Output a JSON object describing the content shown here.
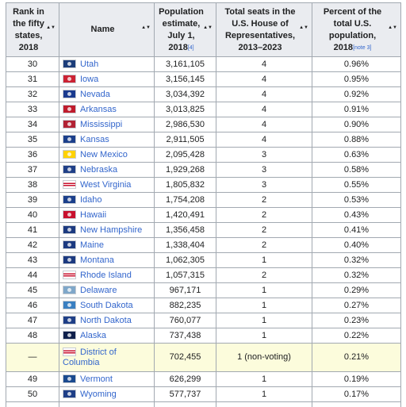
{
  "headers": {
    "rank": "Rank in the fifty states, 2018",
    "name": "Name",
    "population": "Population estimate, July 1, 2018",
    "population_note": "[4]",
    "seats": "Total seats in the U.S. House of Representatives, 2013–2023",
    "percent": "Percent of the total U.S. population, 2018",
    "percent_note": "[note 3]"
  },
  "rows": [
    {
      "rank": "30",
      "name": "Utah",
      "population": "3,161,105",
      "seats": "4",
      "percent": "0.96%",
      "flag_color": "#1c3d7a"
    },
    {
      "rank": "31",
      "name": "Iowa",
      "population": "3,156,145",
      "seats": "4",
      "percent": "0.95%",
      "flag_color": "#cc2233"
    },
    {
      "rank": "32",
      "name": "Nevada",
      "population": "3,034,392",
      "seats": "4",
      "percent": "0.92%",
      "flag_color": "#1a3a8f"
    },
    {
      "rank": "33",
      "name": "Arkansas",
      "population": "3,013,825",
      "seats": "4",
      "percent": "0.91%",
      "flag_color": "#bf1b2c"
    },
    {
      "rank": "34",
      "name": "Mississippi",
      "population": "2,986,530",
      "seats": "4",
      "percent": "0.90%",
      "flag_color": "#b22234"
    },
    {
      "rank": "35",
      "name": "Kansas",
      "population": "2,911,505",
      "seats": "4",
      "percent": "0.88%",
      "flag_color": "#1b3f8b"
    },
    {
      "rank": "36",
      "name": "New Mexico",
      "population": "2,095,428",
      "seats": "3",
      "percent": "0.63%",
      "flag_color": "#ffd200"
    },
    {
      "rank": "37",
      "name": "Nebraska",
      "population": "1,929,268",
      "seats": "3",
      "percent": "0.58%",
      "flag_color": "#1f3f87"
    },
    {
      "rank": "38",
      "name": "West Virginia",
      "population": "1,805,832",
      "seats": "3",
      "percent": "0.55%",
      "flag_color": "#ffffff"
    },
    {
      "rank": "39",
      "name": "Idaho",
      "population": "1,754,208",
      "seats": "2",
      "percent": "0.53%",
      "flag_color": "#1b3f8b"
    },
    {
      "rank": "40",
      "name": "Hawaii",
      "population": "1,420,491",
      "seats": "2",
      "percent": "0.43%",
      "flag_color": "#c8102e"
    },
    {
      "rank": "41",
      "name": "New Hampshire",
      "population": "1,356,458",
      "seats": "2",
      "percent": "0.41%",
      "flag_color": "#1c3a80"
    },
    {
      "rank": "42",
      "name": "Maine",
      "population": "1,338,404",
      "seats": "2",
      "percent": "0.40%",
      "flag_color": "#1c3a80"
    },
    {
      "rank": "43",
      "name": "Montana",
      "population": "1,062,305",
      "seats": "1",
      "percent": "0.32%",
      "flag_color": "#1c3a80"
    },
    {
      "rank": "44",
      "name": "Rhode Island",
      "population": "1,057,315",
      "seats": "2",
      "percent": "0.32%",
      "flag_color": "#ffffff"
    },
    {
      "rank": "45",
      "name": "Delaware",
      "population": "967,171",
      "seats": "1",
      "percent": "0.29%",
      "flag_color": "#7fa7c9"
    },
    {
      "rank": "46",
      "name": "South Dakota",
      "population": "882,235",
      "seats": "1",
      "percent": "0.27%",
      "flag_color": "#3a7fc1"
    },
    {
      "rank": "47",
      "name": "North Dakota",
      "population": "760,077",
      "seats": "1",
      "percent": "0.23%",
      "flag_color": "#1f3f87"
    },
    {
      "rank": "48",
      "name": "Alaska",
      "population": "737,438",
      "seats": "1",
      "percent": "0.22%",
      "flag_color": "#0f204b"
    },
    {
      "rank": "—",
      "name": "District of Columbia",
      "population": "702,455",
      "seats": "1 (non-voting)",
      "percent": "0.21%",
      "flag_color": "#ffffff",
      "highlight": true
    },
    {
      "rank": "49",
      "name": "Vermont",
      "population": "626,299",
      "seats": "1",
      "percent": "0.19%",
      "flag_color": "#1a4a8f"
    },
    {
      "rank": "50",
      "name": "Wyoming",
      "population": "577,737",
      "seats": "1",
      "percent": "0.17%",
      "flag_color": "#1f3f87"
    }
  ],
  "colors": {
    "header_bg": "#eaecf0",
    "border": "#a2a9b1",
    "link": "#3366cc",
    "highlight_row": "#fcfcdc"
  }
}
